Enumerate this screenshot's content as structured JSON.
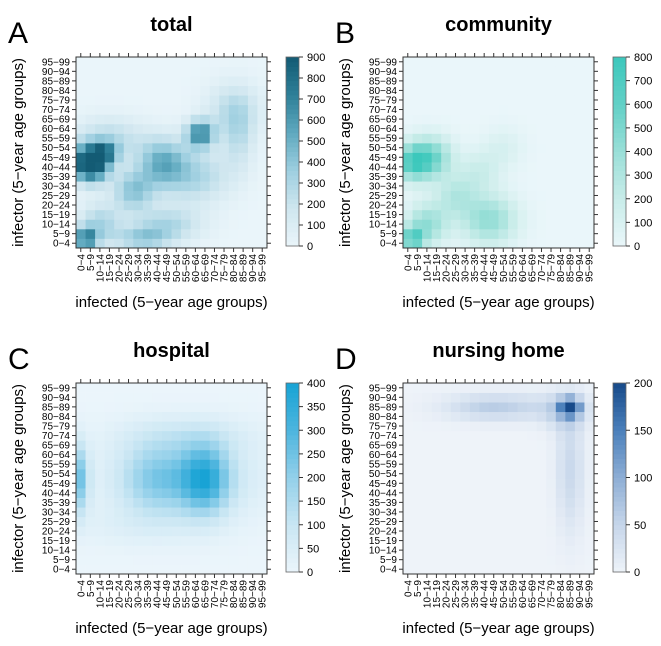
{
  "chart_data": [
    {
      "type": "heatmap",
      "panel_letter": "A",
      "title": "total",
      "xlabel": "infected (5−year age groups)",
      "ylabel": "infector (5−year age groups)",
      "color_max": 900,
      "colorbar_ticks": [
        0,
        100,
        200,
        300,
        400,
        500,
        600,
        700,
        800,
        900
      ],
      "palette": [
        "#eaf5fa",
        "#cfe6ef",
        "#9ecfe0",
        "#5fa9bf",
        "#2e7f98",
        "#135b74"
      ],
      "blobs": [
        {
          "x": 0.5,
          "y": 8.5,
          "sx": 1.2,
          "sy": 1.3,
          "v": 700
        },
        {
          "x": 1.5,
          "y": 8.0,
          "sx": 1.2,
          "sy": 1.2,
          "v": 500
        },
        {
          "x": 2.5,
          "y": 9.5,
          "sx": 1.0,
          "sy": 0.8,
          "v": 560
        },
        {
          "x": 0.5,
          "y": 0.5,
          "sx": 0.8,
          "sy": 0.8,
          "v": 700
        },
        {
          "x": 2.0,
          "y": 2.0,
          "sx": 1.5,
          "sy": 1.5,
          "v": 320
        },
        {
          "x": 5.5,
          "y": 5.5,
          "sx": 1.5,
          "sy": 1.5,
          "v": 400
        },
        {
          "x": 8.5,
          "y": 8.5,
          "sx": 1.8,
          "sy": 1.8,
          "v": 470
        },
        {
          "x": 12.5,
          "y": 11.5,
          "sx": 1.0,
          "sy": 1.0,
          "v": 680
        },
        {
          "x": 9.0,
          "y": 2.0,
          "sx": 2.5,
          "sy": 1.2,
          "v": 300
        },
        {
          "x": 6.5,
          "y": 0.5,
          "sx": 2.0,
          "sy": 0.8,
          "v": 350
        },
        {
          "x": 12.0,
          "y": 7.0,
          "sx": 2.5,
          "sy": 2.0,
          "v": 300
        },
        {
          "x": 3.0,
          "y": 11.0,
          "sx": 2.5,
          "sy": 1.5,
          "v": 260
        },
        {
          "x": 16.0,
          "y": 14.0,
          "sx": 2.0,
          "sy": 2.0,
          "v": 240
        },
        {
          "x": 16.5,
          "y": 11.0,
          "sx": 1.2,
          "sy": 2.5,
          "v": 200
        }
      ]
    },
    {
      "type": "heatmap",
      "panel_letter": "B",
      "title": "community",
      "xlabel": "infected (5−year age groups)",
      "ylabel": "infector (5−year age groups)",
      "color_max": 800,
      "colorbar_ticks": [
        0,
        100,
        200,
        300,
        400,
        500,
        600,
        700,
        800
      ],
      "palette": [
        "#eaf6fa",
        "#c8ece9",
        "#9adfd8",
        "#62d0c6",
        "#3cc8bc"
      ],
      "blobs": [
        {
          "x": 0.5,
          "y": 8.5,
          "sx": 1.2,
          "sy": 1.3,
          "v": 620
        },
        {
          "x": 2.5,
          "y": 9.0,
          "sx": 1.5,
          "sy": 1.5,
          "v": 520
        },
        {
          "x": 0.5,
          "y": 0.5,
          "sx": 0.8,
          "sy": 0.8,
          "v": 620
        },
        {
          "x": 2.0,
          "y": 2.0,
          "sx": 1.5,
          "sy": 1.5,
          "v": 420
        },
        {
          "x": 8.5,
          "y": 2.5,
          "sx": 2.0,
          "sy": 1.8,
          "v": 430
        },
        {
          "x": 5.0,
          "y": 5.0,
          "sx": 1.5,
          "sy": 1.5,
          "v": 260
        },
        {
          "x": 7.5,
          "y": 7.5,
          "sx": 1.5,
          "sy": 1.5,
          "v": 180
        },
        {
          "x": 10.0,
          "y": 10.0,
          "sx": 1.5,
          "sy": 1.5,
          "v": 110
        }
      ]
    },
    {
      "type": "heatmap",
      "panel_letter": "C",
      "title": "hospital",
      "xlabel": "infected (5−year age groups)",
      "ylabel": "infector (5−year age groups)",
      "color_max": 400,
      "colorbar_ticks": [
        0,
        50,
        100,
        150,
        200,
        250,
        300,
        350,
        400
      ],
      "palette": [
        "#ebf5fb",
        "#c9e6f3",
        "#93d0ea",
        "#4db5de",
        "#18a3d5"
      ],
      "blobs": [
        {
          "x": 13.0,
          "y": 9.5,
          "sx": 1.8,
          "sy": 2.5,
          "v": 300
        },
        {
          "x": 0.0,
          "y": 9.5,
          "sx": 0.6,
          "sy": 2.5,
          "v": 230
        },
        {
          "x": 8.0,
          "y": 9.5,
          "sx": 2.5,
          "sy": 2.5,
          "v": 160
        },
        {
          "x": 11.0,
          "y": 9.5,
          "sx": 6.0,
          "sy": 3.0,
          "v": 90
        },
        {
          "x": 11.0,
          "y": 14.0,
          "sx": 5.0,
          "sy": 1.5,
          "v": 60
        },
        {
          "x": 6.0,
          "y": 4.5,
          "sx": 5.0,
          "sy": 1.5,
          "v": 30
        }
      ]
    },
    {
      "type": "heatmap",
      "panel_letter": "D",
      "title": "nursing home",
      "xlabel": "infected (5−year age groups)",
      "ylabel": "infector (5−year age groups)",
      "color_max": 200,
      "colorbar_ticks": [
        0,
        50,
        100,
        150,
        200
      ],
      "palette": [
        "#eef3f9",
        "#c6d6ea",
        "#8eaed5",
        "#4b80bb",
        "#174a8a"
      ],
      "blobs": [
        {
          "x": 17.0,
          "y": 17.0,
          "sx": 0.7,
          "sy": 0.6,
          "v": 190
        },
        {
          "x": 16.5,
          "y": 16.5,
          "sx": 1.5,
          "sy": 1.3,
          "v": 55
        },
        {
          "x": 10.5,
          "y": 17.0,
          "sx": 4.5,
          "sy": 1.0,
          "v": 45
        },
        {
          "x": 17.0,
          "y": 10.5,
          "sx": 1.0,
          "sy": 4.5,
          "v": 45
        },
        {
          "x": 8.0,
          "y": 17.0,
          "sx": 2.5,
          "sy": 0.8,
          "v": 20
        }
      ]
    }
  ],
  "age_groups": [
    "0−4",
    "5−9",
    "10−14",
    "15−19",
    "20−24",
    "25−29",
    "30−34",
    "35−39",
    "40−44",
    "45−49",
    "50−54",
    "55−59",
    "60−64",
    "65−69",
    "70−74",
    "75−79",
    "80−84",
    "85−89",
    "90−94",
    "95−99"
  ]
}
